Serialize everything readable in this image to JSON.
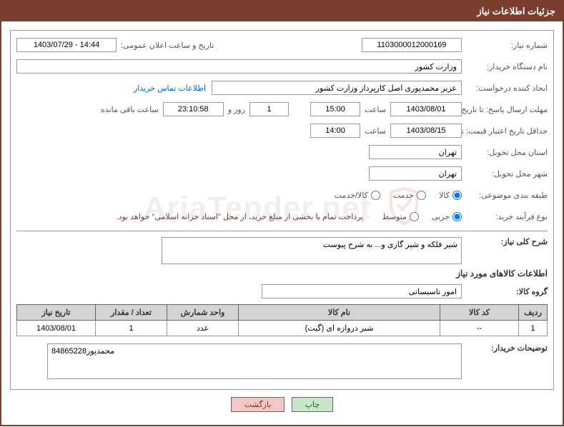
{
  "header": {
    "title": "جزئیات اطلاعات نیاز"
  },
  "form": {
    "need_number_label": "شماره نیاز:",
    "need_number": "1103000012000169",
    "announce_date_label": "تاریخ و ساعت اعلان عمومی:",
    "announce_date": "14:44 - 1403/07/29",
    "buyer_org_label": "نام دستگاه خریدار:",
    "buyer_org": "وزارت کشور",
    "requester_label": "ایجاد کننده درخواست:",
    "requester": "عزیز محمدپوری اصل کارپرداز وزارت کشور",
    "contact_link": "اطلاعات تماس خریدار",
    "response_deadline_label": "مهلت ارسال پاسخ: تا تاریخ:",
    "response_deadline_date": "1403/08/01",
    "hour_label": "ساعت",
    "response_deadline_time": "15:00",
    "response_remaining_days": "1",
    "between_label": "روز و",
    "response_remaining_time": "23:10:58",
    "remaining_label": "ساعت باقی مانده",
    "price_validity_label": "حداقل تاریخ اعتبار قیمت: تا تاریخ:",
    "price_validity_date": "1403/08/15",
    "price_validity_time": "14:00",
    "delivery_province_label": "استان محل تحویل:",
    "delivery_province": "تهران",
    "delivery_city_label": "شهر محل تحویل:",
    "delivery_city": "تهران",
    "category_label": "طبقه بندی موضوعی:",
    "category_goods": "کالا",
    "category_service": "خدمت",
    "category_mixed": "کالا/خدمت",
    "purchase_type_label": "نوع فرآیند خرید:",
    "purchase_type_small": "جزیی",
    "purchase_type_medium": "متوسط",
    "payment_note": "پرداخت تمام یا بخشی از مبلغ خرید، از محل \"اسناد خزانه اسلامی\" خواهد بود.",
    "summary_label": "شرح کلی نیاز:",
    "summary_text": "شیر فلکه و شیر گازی و... به شرح پیوست",
    "items_heading": "اطلاعات کالاهای مورد نیاز",
    "product_group_label": "گروه کالا:",
    "product_group": "امور تاسیساتی",
    "buyer_desc_label": "توضیحات خریدار:",
    "buyer_desc": "84865228محمدپور"
  },
  "table": {
    "headers": {
      "row": "ردیف",
      "product_code": "کد کالا",
      "product_name": "نام کالا",
      "unit": "واحد شمارش",
      "quantity": "تعداد / مقدار",
      "need_date": "تاریخ نیاز"
    },
    "rows": [
      {
        "row": "1",
        "product_code": "--",
        "product_name": "شیر دروازه ای (گیت)",
        "unit": "عدد",
        "quantity": "1",
        "need_date": "1403/08/01"
      }
    ],
    "col_widths": {
      "row": "40px",
      "product_code": "110px",
      "product_name": "auto",
      "unit": "100px",
      "quantity": "100px",
      "need_date": "110px"
    }
  },
  "buttons": {
    "print": "چاپ",
    "back": "بازگشت"
  },
  "colors": {
    "header_bg": "#7a3d2e",
    "header_text": "#ffffff",
    "border": "#999999",
    "label_text": "#555555",
    "link": "#0066cc",
    "note_text": "#7a3d2e",
    "th_bg": "#d4d4d4",
    "btn_print_bg": "#c8e6c8",
    "btn_back_bg": "#f4c7c7",
    "watermark_shield": "rgba(200,60,60,0.15)"
  },
  "watermark": {
    "text": "AriaTender.net"
  }
}
